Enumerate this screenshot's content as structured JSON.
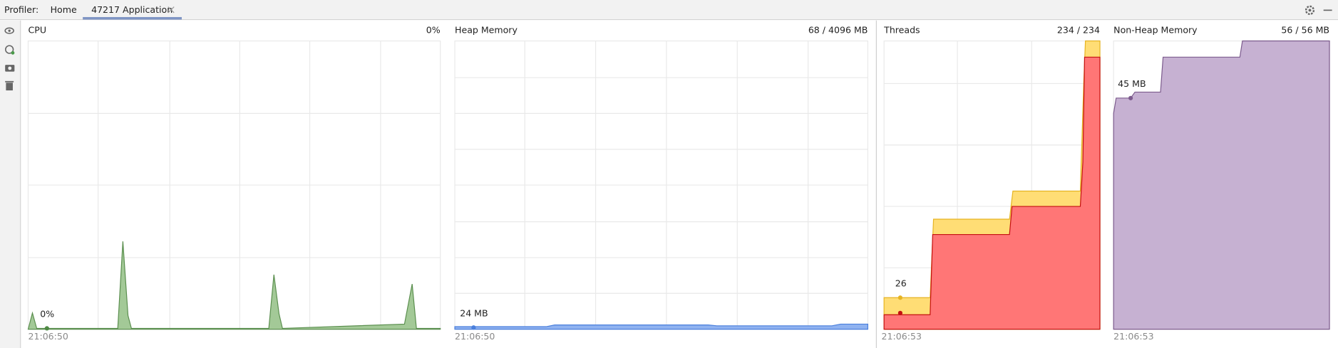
{
  "header": {
    "label": "Profiler:",
    "tabs": [
      "Home",
      "47217 Application"
    ]
  },
  "panels": [
    {
      "title": "CPU",
      "value": "0%",
      "annotation": "0%",
      "time": "21:06:50"
    },
    {
      "title": "Heap Memory",
      "value": "68 / 4096 MB",
      "annotation": "24 MB",
      "time": "21:06:50"
    },
    {
      "title": "Threads",
      "value": "234 / 234",
      "annotation": "26",
      "time": "21:06:53"
    },
    {
      "title": "Non-Heap Memory",
      "value": "56 / 56 MB",
      "annotation": "45 MB",
      "time": "21:06:53"
    }
  ]
}
